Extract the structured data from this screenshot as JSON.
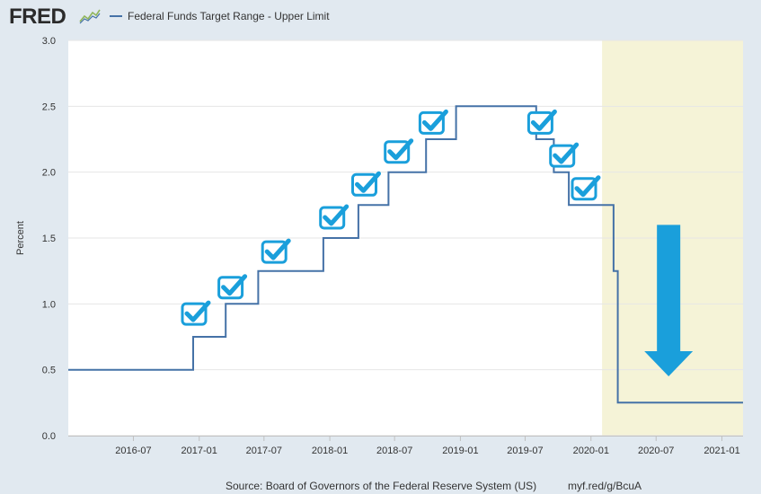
{
  "header": {
    "logo_text": "FRED",
    "logo_icon": "line-graph-icon",
    "series_label": "Federal Funds Target Range - Upper Limit"
  },
  "footer": {
    "source": "Source: Board of Governors of the Federal Reserve System (US)",
    "url": "myf.red/g/BcuA"
  },
  "colors": {
    "line": "#4572a7",
    "recession": "#f5f3d7",
    "check": "#1a9fdb",
    "arrow": "#1a9fdb",
    "background": "#e1e9f0"
  },
  "chart_data": {
    "type": "line",
    "step": true,
    "title": "Federal Funds Target Range - Upper Limit",
    "xlabel": "",
    "ylabel": "Percent",
    "xlim": [
      "2016-01-01",
      "2021-03-01"
    ],
    "ylim": [
      0,
      3.0
    ],
    "yticks": [
      0.0,
      0.5,
      1.0,
      1.5,
      2.0,
      2.5,
      3.0
    ],
    "ytick_labels": [
      "0.0",
      "0.5",
      "1.0",
      "1.5",
      "2.0",
      "2.5",
      "3.0"
    ],
    "xticks": [
      "2016-07-01",
      "2017-01-01",
      "2017-07-01",
      "2018-01-01",
      "2018-07-01",
      "2019-01-01",
      "2019-07-01",
      "2020-01-01",
      "2020-07-01",
      "2021-01-01"
    ],
    "xtick_labels": [
      "2016-07",
      "2017-01",
      "2017-07",
      "2018-01",
      "2018-07",
      "2019-01",
      "2019-07",
      "2020-01",
      "2020-07",
      "2021-01"
    ],
    "grid": true,
    "legend": "top-left",
    "recession_shading": {
      "start": "2020-02-01",
      "end": "2021-03-01"
    },
    "series": [
      {
        "name": "Federal Funds Target Range - Upper Limit",
        "points": [
          {
            "x": "2016-01-01",
            "y": 0.5
          },
          {
            "x": "2016-12-15",
            "y": 0.75
          },
          {
            "x": "2017-03-16",
            "y": 1.0
          },
          {
            "x": "2017-06-15",
            "y": 1.25
          },
          {
            "x": "2017-12-14",
            "y": 1.5
          },
          {
            "x": "2018-03-22",
            "y": 1.75
          },
          {
            "x": "2018-06-14",
            "y": 2.0
          },
          {
            "x": "2018-09-27",
            "y": 2.25
          },
          {
            "x": "2018-12-20",
            "y": 2.5
          },
          {
            "x": "2019-08-01",
            "y": 2.25
          },
          {
            "x": "2019-09-19",
            "y": 2.0
          },
          {
            "x": "2019-10-31",
            "y": 1.75
          },
          {
            "x": "2020-03-04",
            "y": 1.25
          },
          {
            "x": "2020-03-16",
            "y": 0.25
          },
          {
            "x": "2021-03-01",
            "y": 0.25
          }
        ]
      }
    ],
    "annotations": {
      "checkmark_icons": [
        {
          "x": "2016-12-20",
          "y": 0.92
        },
        {
          "x": "2017-04-01",
          "y": 1.12
        },
        {
          "x": "2017-08-01",
          "y": 1.39
        },
        {
          "x": "2018-01-10",
          "y": 1.65
        },
        {
          "x": "2018-04-10",
          "y": 1.9
        },
        {
          "x": "2018-07-10",
          "y": 2.15
        },
        {
          "x": "2018-10-15",
          "y": 2.37
        },
        {
          "x": "2019-08-15",
          "y": 2.37
        },
        {
          "x": "2019-10-15",
          "y": 2.12
        },
        {
          "x": "2019-12-15",
          "y": 1.87
        }
      ],
      "down_arrow": {
        "x": "2020-08-05",
        "y_top": 1.6,
        "y_bottom": 0.45
      }
    }
  }
}
